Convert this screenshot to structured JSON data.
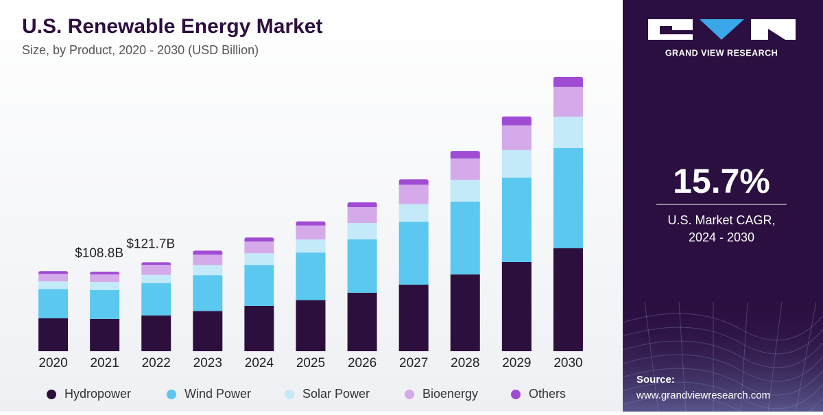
{
  "chart_data": {
    "type": "stacked-bar",
    "title": "U.S. Renewable Energy Market",
    "subtitle": "Size, by Product, 2020 - 2030 (USD Billion)",
    "categories": [
      "2020",
      "2021",
      "2022",
      "2023",
      "2024",
      "2025",
      "2026",
      "2027",
      "2028",
      "2029",
      "2030"
    ],
    "series": [
      {
        "name": "Hydropower",
        "color": "#2d0f3e",
        "values": [
          45.0,
          44.2,
          49.0,
          55.0,
          62.0,
          70.0,
          80.0,
          91.0,
          105.0,
          122.0,
          141.0
        ]
      },
      {
        "name": "Wind Power",
        "color": "#5bc8f0",
        "values": [
          40.0,
          39.5,
          44.2,
          49.0,
          56.0,
          65.0,
          73.0,
          86.0,
          99.6,
          115.6,
          137.0
        ]
      },
      {
        "name": "Solar Power",
        "color": "#c4e9f8",
        "values": [
          10.5,
          11.0,
          11.3,
          14.0,
          16.0,
          18.0,
          22.5,
          24.4,
          30.0,
          37.6,
          43.0
        ]
      },
      {
        "name": "Bioenergy",
        "color": "#d5aaea",
        "values": [
          10.3,
          10.3,
          13.8,
          14.0,
          16.0,
          19.0,
          21.6,
          26.3,
          29.0,
          33.8,
          40.4
        ]
      },
      {
        "name": "Others",
        "color": "#a04bd4",
        "values": [
          3.8,
          3.8,
          3.4,
          5.6,
          5.6,
          5.6,
          6.6,
          7.5,
          10.3,
          12.2,
          14.0
        ]
      }
    ],
    "annotations": [
      {
        "x": "2021",
        "value": 108.8,
        "label": "$108.8B"
      },
      {
        "x": "2022",
        "value": 121.7,
        "label": "$121.7B"
      }
    ]
  },
  "sidebar": {
    "brand": "GRAND VIEW RESEARCH",
    "cagr": "15.7%",
    "cagr_label": "U.S. Market CAGR,",
    "cagr_period": "2024 - 2030",
    "source_label": "Source:",
    "source_url": "www.grandviewresearch.com"
  }
}
